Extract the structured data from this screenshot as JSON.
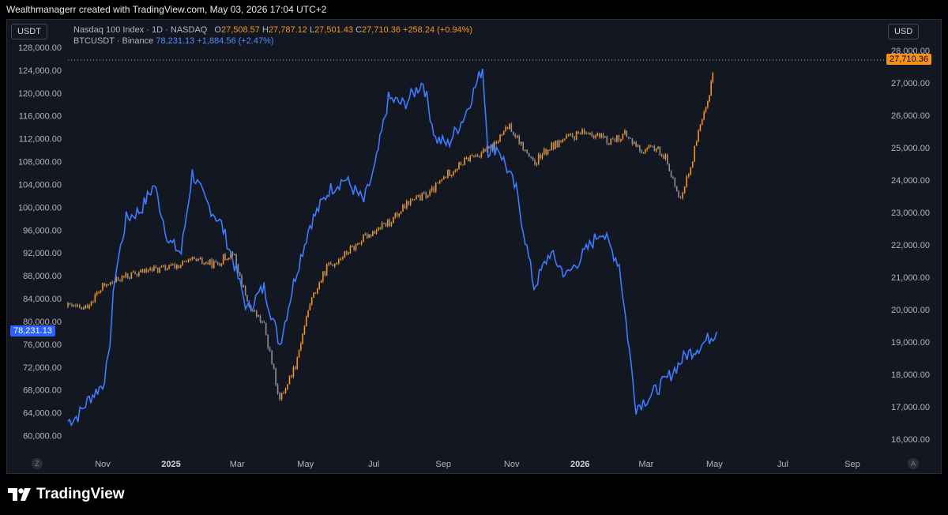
{
  "header": {
    "caption": "Wealthmanagerr created with TradingView.com, May 03, 2026 17:04 UTC+2"
  },
  "controls": {
    "left_currency": "USDT",
    "right_currency": "USD",
    "left_circle": "Z",
    "right_circle": "A"
  },
  "legend": {
    "nasdaq": {
      "title": "Nasdaq 100 Index · 1D · NASDAQ",
      "o_label": "O",
      "o_value": "27,508.57",
      "h_label": "H",
      "h_value": "27,787.12",
      "l_label": "L",
      "l_value": "27,501.43",
      "c_label": "C",
      "c_value": "27,710.36",
      "change": "+258.24 (+0.94%)"
    },
    "btc": {
      "title": "BTCUSDT · Binance",
      "value": "78,231.13",
      "change": "+1,884.56 (+2.47%)"
    }
  },
  "price_tags": {
    "btc_last": "78,231.13",
    "nasdaq_last": "27,710.36"
  },
  "brand": {
    "name": "TradingView"
  },
  "colors": {
    "btc": "#3d7bff",
    "nasdaq_up": "#f7931a",
    "nasdaq_down": "#8e8e96",
    "background": "#131722",
    "text": "#b2b5be"
  },
  "chart_data": {
    "type": "line",
    "x_ticks": [
      "Nov",
      "2025",
      "Mar",
      "May",
      "Jul",
      "Sep",
      "Nov",
      "2026",
      "Mar",
      "May",
      "Jul",
      "Sep"
    ],
    "left_axis": {
      "currency": "USDT",
      "ylim": [
        58000,
        128000
      ],
      "ticks": [
        "128,000.00",
        "124,000.00",
        "120,000.00",
        "116,000.00",
        "112,000.00",
        "108,000.00",
        "104,000.00",
        "100,000.00",
        "96,000.00",
        "92,000.00",
        "88,000.00",
        "84,000.00",
        "80,000.00",
        "76,000.00",
        "72,000.00",
        "68,000.00",
        "64,000.00",
        "60,000.00"
      ]
    },
    "right_axis": {
      "currency": "USD",
      "ylim": [
        15750,
        28100
      ],
      "ticks": [
        "28,000.00",
        "27,000.00",
        "26,000.00",
        "25,000.00",
        "24,000.00",
        "23,000.00",
        "22,000.00",
        "21,000.00",
        "20,000.00",
        "19,000.00",
        "18,000.00",
        "17,000.00",
        "16,000.00"
      ]
    },
    "series": [
      {
        "name": "BTCUSDT · Binance",
        "axis": "left",
        "x": [
          "2024-10-01",
          "2024-10-10",
          "2024-10-20",
          "2024-11-01",
          "2024-11-06",
          "2024-11-12",
          "2024-11-22",
          "2024-12-05",
          "2024-12-17",
          "2024-12-30",
          "2025-01-10",
          "2025-01-20",
          "2025-02-01",
          "2025-02-15",
          "2025-02-25",
          "2025-03-10",
          "2025-03-25",
          "2025-04-08",
          "2025-04-22",
          "2025-05-05",
          "2025-05-22",
          "2025-06-05",
          "2025-06-22",
          "2025-07-02",
          "2025-07-14",
          "2025-07-28",
          "2025-08-14",
          "2025-08-25",
          "2025-09-05",
          "2025-09-20",
          "2025-10-06",
          "2025-10-11",
          "2025-10-20",
          "2025-11-05",
          "2025-11-21",
          "2025-12-05",
          "2025-12-20",
          "2026-01-05",
          "2026-01-20",
          "2026-02-05",
          "2026-02-20",
          "2026-03-05",
          "2026-03-20",
          "2026-04-05",
          "2026-04-20",
          "2026-05-03"
        ],
        "y": [
          62500,
          63500,
          66500,
          69000,
          73000,
          88000,
          98000,
          99500,
          104000,
          94000,
          92000,
          106000,
          101000,
          97000,
          91000,
          82000,
          86000,
          76000,
          88000,
          97000,
          103000,
          105000,
          101000,
          107000,
          119000,
          118000,
          122000,
          112000,
          111000,
          116000,
          124500,
          110000,
          110500,
          103000,
          86000,
          92000,
          88000,
          92000,
          96000,
          90000,
          65000,
          67000,
          70000,
          74000,
          76000,
          78231
        ]
      },
      {
        "name": "Nasdaq 100 Index · 1D · NASDAQ",
        "axis": "right",
        "type": "candlestick",
        "x": [
          "2024-10-01",
          "2024-10-15",
          "2024-11-01",
          "2024-11-20",
          "2024-12-10",
          "2025-01-01",
          "2025-01-20",
          "2025-02-10",
          "2025-02-25",
          "2025-03-10",
          "2025-03-25",
          "2025-04-08",
          "2025-04-22",
          "2025-05-05",
          "2025-05-20",
          "2025-06-05",
          "2025-06-25",
          "2025-07-15",
          "2025-08-01",
          "2025-08-20",
          "2025-09-05",
          "2025-09-25",
          "2025-10-15",
          "2025-10-30",
          "2025-11-20",
          "2025-12-05",
          "2025-12-20",
          "2026-01-10",
          "2026-01-25",
          "2026-02-10",
          "2026-02-25",
          "2026-03-10",
          "2026-03-20",
          "2026-03-30",
          "2026-04-08",
          "2026-04-15",
          "2026-04-25",
          "2026-05-01"
        ],
        "y": [
          20100,
          20000,
          20700,
          21000,
          21200,
          21300,
          21500,
          21400,
          21800,
          20200,
          19500,
          17200,
          18300,
          20200,
          21300,
          21700,
          22300,
          22700,
          23300,
          23600,
          24200,
          24700,
          25000,
          25700,
          24500,
          25000,
          25300,
          25500,
          25200,
          25400,
          24900,
          25000,
          24600,
          23400,
          24200,
          25200,
          26400,
          27710
        ]
      }
    ]
  }
}
